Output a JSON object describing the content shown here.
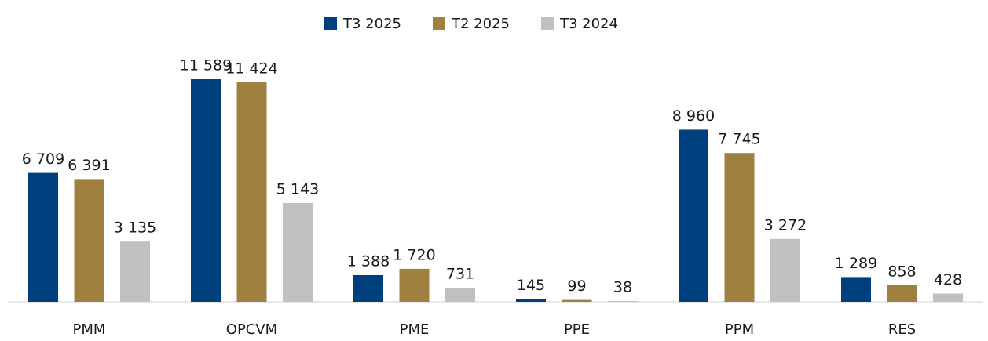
{
  "chart_data": {
    "type": "bar",
    "categories": [
      "PMM",
      "OPCVM",
      "PME",
      "PPE",
      "PPM",
      "RES"
    ],
    "series": [
      {
        "name": "T3 2025",
        "color": "#003f7d",
        "values": [
          6709,
          11589,
          1388,
          145,
          8960,
          1289
        ],
        "value_labels": [
          "6 709",
          "11 589",
          "1 388",
          "145",
          "8 960",
          "1 289"
        ]
      },
      {
        "name": "T2 2025",
        "color": "#a08040",
        "values": [
          6391,
          11424,
          1720,
          99,
          7745,
          858
        ],
        "value_labels": [
          "6 391",
          "11 424",
          "1 720",
          "99",
          "7 745",
          "858"
        ]
      },
      {
        "name": "T3 2024",
        "color": "#c0c0c0",
        "values": [
          3135,
          5143,
          731,
          38,
          3272,
          428
        ],
        "value_labels": [
          "3 135",
          "5 143",
          "731",
          "38",
          "3 272",
          "428"
        ]
      }
    ],
    "legend": "top"
  }
}
